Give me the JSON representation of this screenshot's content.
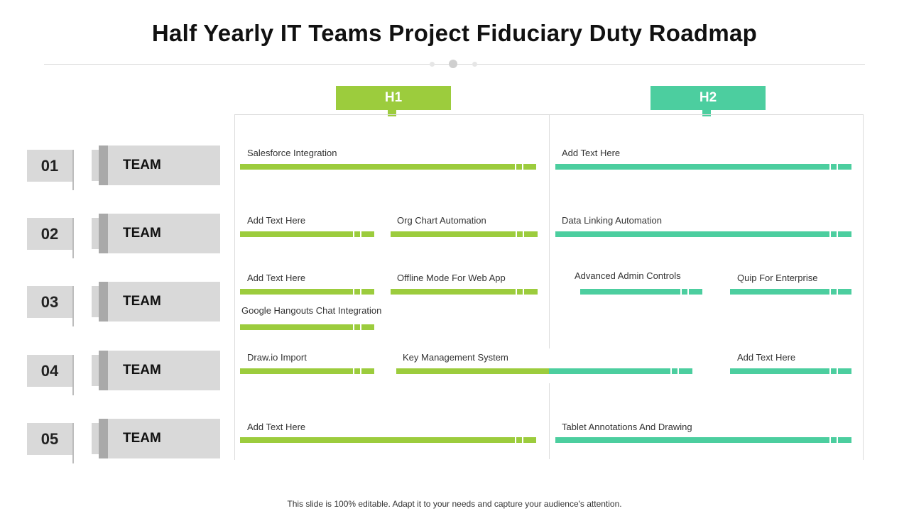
{
  "title": "Half Yearly IT Teams Project Fiduciary Duty Roadmap",
  "colors": {
    "h1": "#9ccc3d",
    "h2": "#4cce9f"
  },
  "halves": [
    {
      "label": "H1"
    },
    {
      "label": "H2"
    }
  ],
  "rows": [
    {
      "number": "01",
      "team": "TEAM"
    },
    {
      "number": "02",
      "team": "TEAM"
    },
    {
      "number": "03",
      "team": "TEAM"
    },
    {
      "number": "04",
      "team": "TEAM"
    },
    {
      "number": "05",
      "team": "TEAM"
    }
  ],
  "tasks": [
    {
      "label": "Salesforce Integration"
    },
    {
      "label": "Add Text Here"
    },
    {
      "label": "Add Text Here"
    },
    {
      "label": "Org Chart Automation"
    },
    {
      "label": "Data Linking Automation"
    },
    {
      "label": "Add Text Here"
    },
    {
      "label": "Offline Mode For Web App"
    },
    {
      "label": "Advanced  Admin Controls"
    },
    {
      "label": "Quip For Enterprise"
    },
    {
      "label": "Google Hangouts  Chat Integration"
    },
    {
      "label": "Draw.io  Import"
    },
    {
      "label": "Key Management  System"
    },
    {
      "label": "Add Text Here"
    },
    {
      "label": "Add Text Here"
    },
    {
      "label": "Tablet Annotations And Drawing"
    }
  ],
  "footer": "This slide is 100% editable. Adapt it to your needs and capture your audience's attention."
}
